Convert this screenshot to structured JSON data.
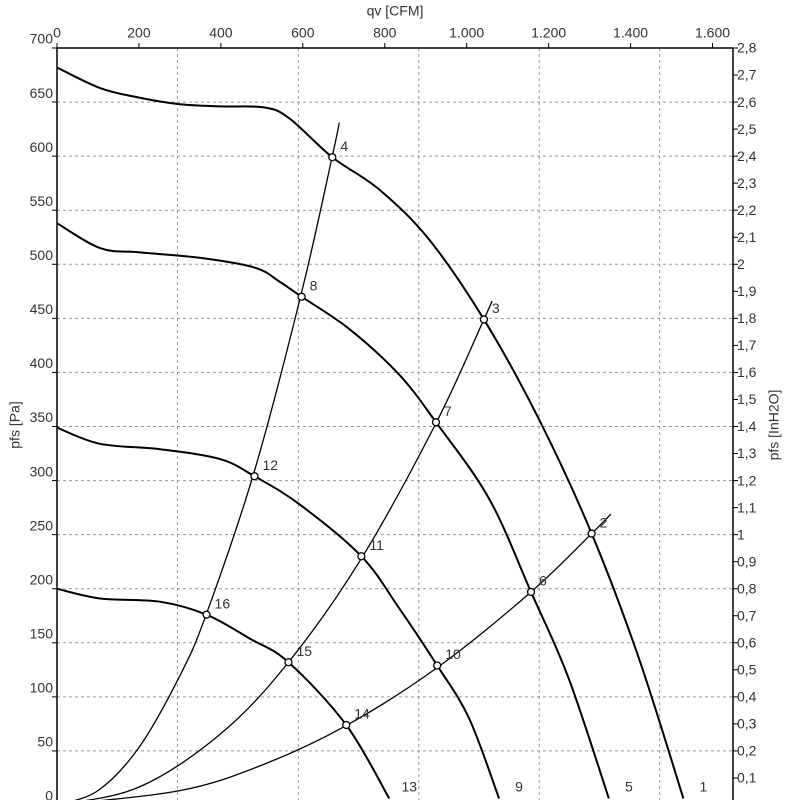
{
  "chart_data": {
    "type": "line",
    "x_label": "qv [CFM]",
    "y_label": "pfs [Pa]",
    "y2_label": "pfs [InH2O]",
    "xlim": [
      0,
      1650
    ],
    "ylim": [
      0,
      700
    ],
    "y2lim": [
      0,
      2.8
    ],
    "xticks": [
      0,
      200,
      400,
      600,
      800,
      {
        "value": 1000,
        "label": "1.000"
      },
      {
        "value": 1200,
        "label": "1.200"
      },
      {
        "value": 1400,
        "label": "1.400"
      },
      {
        "value": 1600,
        "label": "1.600"
      }
    ],
    "yticks": [
      0,
      50,
      100,
      150,
      200,
      250,
      300,
      350,
      400,
      450,
      500,
      550,
      600,
      650,
      700
    ],
    "y2ticks": [
      {
        "value": 0.1,
        "label": "0,1"
      },
      {
        "value": 0.2,
        "label": "0,2"
      },
      {
        "value": 0.3,
        "label": "0,3"
      },
      {
        "value": 0.4,
        "label": "0,4"
      },
      {
        "value": 0.5,
        "label": "0,5"
      },
      {
        "value": 0.6,
        "label": "0,6"
      },
      {
        "value": 0.7,
        "label": "0,7"
      },
      {
        "value": 0.8,
        "label": "0,8"
      },
      {
        "value": 0.9,
        "label": "0,9"
      },
      1,
      {
        "value": 1.1,
        "label": "1,1"
      },
      {
        "value": 1.2,
        "label": "1,2"
      },
      {
        "value": 1.3,
        "label": "1,3"
      },
      {
        "value": 1.4,
        "label": "1,4"
      },
      {
        "value": 1.5,
        "label": "1,5"
      },
      {
        "value": 1.6,
        "label": "1,6"
      },
      {
        "value": 1.7,
        "label": "1,7"
      },
      {
        "value": 1.8,
        "label": "1,8"
      },
      {
        "value": 1.9,
        "label": "1,9"
      },
      2,
      {
        "value": 2.1,
        "label": "2,1"
      },
      {
        "value": 2.2,
        "label": "2,2"
      },
      {
        "value": 2.3,
        "label": "2,3"
      },
      {
        "value": 2.4,
        "label": "2,4"
      },
      {
        "value": 2.5,
        "label": "2,5"
      },
      {
        "value": 2.6,
        "label": "2,6"
      },
      {
        "value": 2.7,
        "label": "2,7"
      },
      {
        "value": 2.8,
        "label": "2,8"
      }
    ],
    "xgrid": [
      294,
      589,
      883,
      1177,
      1471
    ],
    "grid": true,
    "series": [
      {
        "name": "1",
        "color": "#000000",
        "x": [
          0,
          105,
          202,
          300,
          402,
          507,
          567,
          672,
          787,
          908,
          1042,
          1176,
          1305,
          1420,
          1529
        ],
        "values": [
          682,
          663,
          654,
          648,
          646,
          645,
          635,
          599,
          569,
          523,
          449,
          357,
          251,
          136,
          6
        ]
      },
      {
        "name": "5",
        "color": "#000000",
        "x": [
          0,
          105,
          202,
          348,
          482,
          543,
          597,
          714,
          835,
          925,
          1055,
          1157,
          1249,
          1347
        ],
        "values": [
          538,
          515,
          511,
          506,
          497,
          484,
          470,
          440,
          398,
          354,
          283,
          197,
          117,
          6
        ]
      },
      {
        "name": "9",
        "color": "#000000",
        "x": [
          0,
          105,
          251,
          397,
          482,
          592,
          743,
          835,
          928,
          1006,
          1079
        ],
        "values": [
          349,
          334,
          329,
          320,
          304,
          278,
          230,
          182,
          129,
          80,
          6
        ]
      },
      {
        "name": "13",
        "color": "#000000",
        "x": [
          0,
          105,
          251,
          365,
          470,
          565,
          706,
          811
        ],
        "values": [
          200,
          191,
          188,
          176,
          154,
          132,
          74,
          6
        ]
      }
    ],
    "system_curves": [
      {
        "color": "#000000",
        "x": [
          0,
          100,
          200,
          300,
          365,
          482,
          597,
          672,
          689
        ],
        "values": [
          0,
          13.3,
          53.2,
          119.6,
          177,
          309,
          474,
          600,
          631
        ]
      },
      {
        "color": "#000000",
        "x": [
          0,
          200,
          400,
          565,
          743,
          925,
          1042,
          1062
        ],
        "values": [
          0,
          16.5,
          66,
          132,
          228,
          353,
          449,
          466
        ]
      },
      {
        "color": "#000000",
        "x": [
          0,
          300,
          500,
          706,
          928,
          1157,
          1305,
          1352
        ],
        "values": [
          0,
          13.3,
          36.9,
          73.5,
          127,
          197,
          251,
          269
        ]
      }
    ],
    "points": [
      {
        "label": "2",
        "x": 1305,
        "y": 251
      },
      {
        "label": "3",
        "x": 1042,
        "y": 449
      },
      {
        "label": "4",
        "x": 672,
        "y": 599
      },
      {
        "label": "6",
        "x": 1157,
        "y": 197
      },
      {
        "label": "7",
        "x": 925,
        "y": 354
      },
      {
        "label": "8",
        "x": 597,
        "y": 470
      },
      {
        "label": "10",
        "x": 928,
        "y": 129
      },
      {
        "label": "11",
        "x": 743,
        "y": 230
      },
      {
        "label": "12",
        "x": 482,
        "y": 304
      },
      {
        "label": "14",
        "x": 706,
        "y": 74
      },
      {
        "label": "15",
        "x": 565,
        "y": 132
      },
      {
        "label": "16",
        "x": 365,
        "y": 176
      }
    ]
  }
}
